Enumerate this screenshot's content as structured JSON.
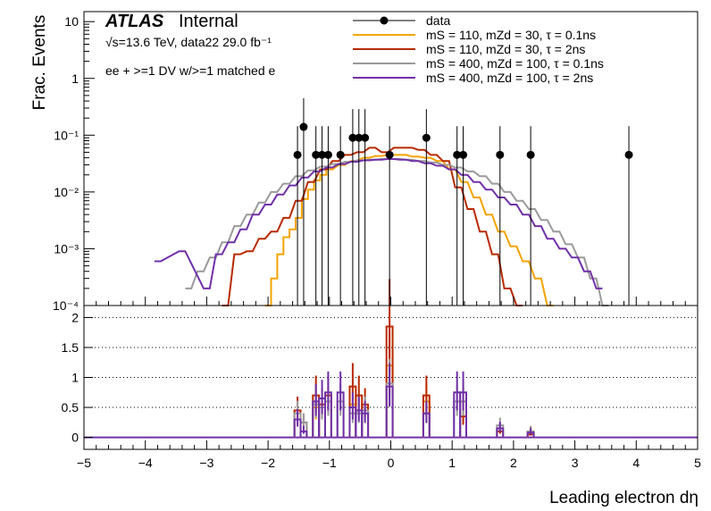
{
  "chart_data": {
    "type": "histogram",
    "experiment_label": "ATLAS",
    "experiment_status": "Internal",
    "energy_label": "√s=13.6 TeV, data22 29.0 fb⁻¹",
    "selection_label": "ee + >=1 DV w/>=1 matched e",
    "xlabel": "Leading electron dη",
    "ylabel": "Frac. Events",
    "xlim": [
      -5,
      5
    ],
    "x_ticks": [
      "−5",
      "−4",
      "−3",
      "−2",
      "−1",
      "0",
      "1",
      "2",
      "3",
      "4",
      "5"
    ],
    "top_panel": {
      "yscale": "log",
      "ylim": [
        0.0001,
        15
      ],
      "y_ticks": [
        {
          "value": 10,
          "label": "10"
        },
        {
          "value": 1,
          "label": "1"
        },
        {
          "value": 0.1,
          "label": "10⁻¹"
        },
        {
          "value": 0.01,
          "label": "10⁻²"
        },
        {
          "value": 0.001,
          "label": "10⁻³"
        },
        {
          "value": 0.0001,
          "label": "10⁻⁴"
        }
      ]
    },
    "ratio_panel": {
      "ylim": [
        -0.2,
        2.2
      ],
      "y_ticks": [
        "0",
        "0.5",
        "1",
        "1.5",
        "2"
      ],
      "y_tick_values": [
        0,
        0.5,
        1,
        1.5,
        2
      ],
      "grid_y": true
    },
    "legend": {
      "position": "top-right",
      "entries": [
        {
          "label": "data",
          "color": "#000000",
          "style": "marker"
        },
        {
          "label": "mS = 110, mZd = 30, τ = 0.1ns",
          "color": "#f5a300",
          "style": "line"
        },
        {
          "label": "mS = 110, mZd = 30, τ = 2ns",
          "color": "#b82a00",
          "style": "line"
        },
        {
          "label": "mS = 400, mZd = 100, τ = 0.1ns",
          "color": "#9a9a9a",
          "style": "line"
        },
        {
          "label": "mS = 400, mZd = 100, τ = 2ns",
          "color": "#7030a8",
          "style": "line"
        }
      ]
    },
    "data_points": {
      "x": [
        -1.52,
        -1.42,
        -1.22,
        -1.12,
        -1.02,
        -0.82,
        -0.62,
        -0.52,
        -0.42,
        -0.02,
        0.58,
        1.08,
        1.18,
        1.78,
        2.28,
        3.88
      ],
      "y": [
        0.045,
        0.14,
        0.045,
        0.045,
        0.045,
        0.045,
        0.09,
        0.09,
        0.09,
        0.045,
        0.09,
        0.045,
        0.045,
        0.045,
        0.045,
        0.045
      ]
    },
    "series": [
      {
        "name": "mS = 110, mZd = 30, τ = 0.1ns",
        "color": "#f5a300",
        "points": [
          [
            -2.0,
            0.0001
          ],
          [
            -1.9,
            0.0003
          ],
          [
            -1.8,
            0.0008
          ],
          [
            -1.7,
            0.0016
          ],
          [
            -1.6,
            0.0022
          ],
          [
            -1.5,
            0.0035
          ],
          [
            -1.4,
            0.0075
          ],
          [
            -1.3,
            0.011
          ],
          [
            -1.2,
            0.016
          ],
          [
            -1.1,
            0.02
          ],
          [
            -1.0,
            0.025
          ],
          [
            -0.8,
            0.03
          ],
          [
            -0.6,
            0.035
          ],
          [
            -0.4,
            0.04
          ],
          [
            -0.2,
            0.043
          ],
          [
            0,
            0.045
          ],
          [
            0.2,
            0.045
          ],
          [
            0.4,
            0.042
          ],
          [
            0.6,
            0.04
          ],
          [
            0.8,
            0.035
          ],
          [
            1.0,
            0.025
          ],
          [
            1.2,
            0.015
          ],
          [
            1.4,
            0.008
          ],
          [
            1.6,
            0.004
          ],
          [
            1.8,
            0.002
          ],
          [
            2.0,
            0.0011
          ],
          [
            2.2,
            0.0006
          ],
          [
            2.4,
            0.0003
          ],
          [
            2.6,
            0.0001
          ]
        ]
      },
      {
        "name": "mS = 110, mZd = 30, τ = 2ns",
        "color": "#b82a00",
        "points": [
          [
            -2.7,
            0.0001
          ],
          [
            -2.5,
            0.0008
          ],
          [
            -2.3,
            0.0009
          ],
          [
            -2.1,
            0.0015
          ],
          [
            -1.9,
            0.002
          ],
          [
            -1.7,
            0.0035
          ],
          [
            -1.5,
            0.007
          ],
          [
            -1.3,
            0.015
          ],
          [
            -1.1,
            0.025
          ],
          [
            -0.9,
            0.035
          ],
          [
            -0.7,
            0.045
          ],
          [
            -0.5,
            0.05
          ],
          [
            -0.3,
            0.06
          ],
          [
            -0.1,
            0.05
          ],
          [
            0.1,
            0.06
          ],
          [
            0.3,
            0.06
          ],
          [
            0.5,
            0.055
          ],
          [
            0.7,
            0.045
          ],
          [
            0.9,
            0.035
          ],
          [
            1.1,
            0.012
          ],
          [
            1.3,
            0.005
          ],
          [
            1.5,
            0.002
          ],
          [
            1.7,
            0.0008
          ],
          [
            1.9,
            0.0002
          ],
          [
            2.1,
            0.0001
          ]
        ]
      },
      {
        "name": "mS = 400, mZd = 100, τ = 0.1ns",
        "color": "#9a9a9a",
        "points": [
          [
            -3.3,
            0.0002
          ],
          [
            -3.1,
            0.0004
          ],
          [
            -2.9,
            0.0007
          ],
          [
            -2.7,
            0.0013
          ],
          [
            -2.5,
            0.0025
          ],
          [
            -2.3,
            0.004
          ],
          [
            -2.1,
            0.0065
          ],
          [
            -1.9,
            0.01
          ],
          [
            -1.7,
            0.014
          ],
          [
            -1.5,
            0.019
          ],
          [
            -1.3,
            0.024
          ],
          [
            -1.1,
            0.028
          ],
          [
            -0.9,
            0.031
          ],
          [
            -0.7,
            0.034
          ],
          [
            -0.5,
            0.036
          ],
          [
            -0.3,
            0.037
          ],
          [
            -0.1,
            0.038
          ],
          [
            0.1,
            0.038
          ],
          [
            0.3,
            0.037
          ],
          [
            0.5,
            0.035
          ],
          [
            0.7,
            0.033
          ],
          [
            0.9,
            0.03
          ],
          [
            1.1,
            0.027
          ],
          [
            1.3,
            0.023
          ],
          [
            1.5,
            0.019
          ],
          [
            1.7,
            0.014
          ],
          [
            1.9,
            0.01
          ],
          [
            2.1,
            0.007
          ],
          [
            2.3,
            0.005
          ],
          [
            2.5,
            0.0032
          ],
          [
            2.7,
            0.002
          ],
          [
            2.9,
            0.0012
          ],
          [
            3.1,
            0.0007
          ],
          [
            3.3,
            0.0003
          ],
          [
            3.5,
            0.0001
          ]
        ]
      },
      {
        "name": "mS = 400, mZd = 100, τ = 2ns",
        "color": "#7030a8",
        "points": [
          [
            -3.8,
            0.0006
          ],
          [
            -3.4,
            0.0009
          ],
          [
            -3.0,
            0.0002
          ],
          [
            -2.8,
            0.0008
          ],
          [
            -2.6,
            0.0013
          ],
          [
            -2.4,
            0.0022
          ],
          [
            -2.2,
            0.004
          ],
          [
            -2.0,
            0.006
          ],
          [
            -1.8,
            0.009
          ],
          [
            -1.6,
            0.013
          ],
          [
            -1.4,
            0.018
          ],
          [
            -1.2,
            0.023
          ],
          [
            -1.0,
            0.027
          ],
          [
            -0.8,
            0.031
          ],
          [
            -0.6,
            0.034
          ],
          [
            -0.4,
            0.036
          ],
          [
            -0.2,
            0.037
          ],
          [
            0.0,
            0.038
          ],
          [
            0.2,
            0.037
          ],
          [
            0.4,
            0.035
          ],
          [
            0.6,
            0.032
          ],
          [
            0.8,
            0.029
          ],
          [
            1.0,
            0.025
          ],
          [
            1.2,
            0.02
          ],
          [
            1.4,
            0.015
          ],
          [
            1.6,
            0.011
          ],
          [
            1.8,
            0.008
          ],
          [
            2.0,
            0.006
          ],
          [
            2.2,
            0.004
          ],
          [
            2.4,
            0.0025
          ],
          [
            2.6,
            0.0015
          ],
          [
            2.8,
            0.001
          ],
          [
            3.0,
            0.0007
          ],
          [
            3.2,
            0.0004
          ],
          [
            3.4,
            0.0002
          ]
        ]
      }
    ],
    "ratio_series": [
      {
        "name": "mS = 110, mZd = 30, τ = 0.1ns",
        "color": "#f5a300",
        "points": [
          [
            -1.52,
            0.3
          ],
          [
            -1.22,
            0.5
          ],
          [
            -0.62,
            0.55
          ],
          [
            -0.02,
            1.2
          ],
          [
            0.58,
            0.6
          ],
          [
            1.18,
            0.6
          ],
          [
            2.28,
            0.1
          ]
        ]
      },
      {
        "name": "mS = 110, mZd = 30, τ = 2ns",
        "color": "#b82a00",
        "points": [
          [
            -1.52,
            0.45
          ],
          [
            -1.42,
            0.25
          ],
          [
            -1.22,
            0.7
          ],
          [
            -1.12,
            0.55
          ],
          [
            -1.02,
            0.7
          ],
          [
            -0.62,
            0.85
          ],
          [
            -0.52,
            0.7
          ],
          [
            -0.42,
            0.55
          ],
          [
            -0.02,
            1.85
          ],
          [
            0.58,
            0.7
          ],
          [
            1.18,
            0.35
          ],
          [
            1.78,
            0.1
          ],
          [
            2.28,
            0.05
          ]
        ]
      },
      {
        "name": "mS = 400, mZd = 100, τ = 0.1ns",
        "color": "#9a9a9a",
        "points": [
          [
            -1.52,
            0.4
          ],
          [
            -1.42,
            0.25
          ],
          [
            -1.22,
            0.55
          ],
          [
            -1.12,
            0.5
          ],
          [
            -1.02,
            0.6
          ],
          [
            -0.82,
            0.6
          ],
          [
            -0.62,
            0.4
          ],
          [
            -0.52,
            0.4
          ],
          [
            -0.42,
            0.45
          ],
          [
            -0.02,
            0.9
          ],
          [
            0.58,
            0.4
          ],
          [
            1.08,
            0.6
          ],
          [
            1.18,
            0.6
          ],
          [
            1.78,
            0.2
          ],
          [
            2.28,
            0.1
          ]
        ]
      },
      {
        "name": "mS = 400, mZd = 100, τ = 2ns",
        "color": "#7030a8",
        "points": [
          [
            -1.52,
            0.3
          ],
          [
            -1.42,
            0.1
          ],
          [
            -1.22,
            0.6
          ],
          [
            -1.12,
            0.65
          ],
          [
            -1.02,
            0.75
          ],
          [
            -0.82,
            0.75
          ],
          [
            -0.62,
            0.5
          ],
          [
            -0.52,
            0.45
          ],
          [
            -0.42,
            0.4
          ],
          [
            -0.02,
            0.85
          ],
          [
            0.58,
            0.4
          ],
          [
            1.08,
            0.75
          ],
          [
            1.18,
            0.75
          ],
          [
            1.78,
            0.15
          ],
          [
            2.28,
            0.08
          ]
        ]
      }
    ]
  }
}
